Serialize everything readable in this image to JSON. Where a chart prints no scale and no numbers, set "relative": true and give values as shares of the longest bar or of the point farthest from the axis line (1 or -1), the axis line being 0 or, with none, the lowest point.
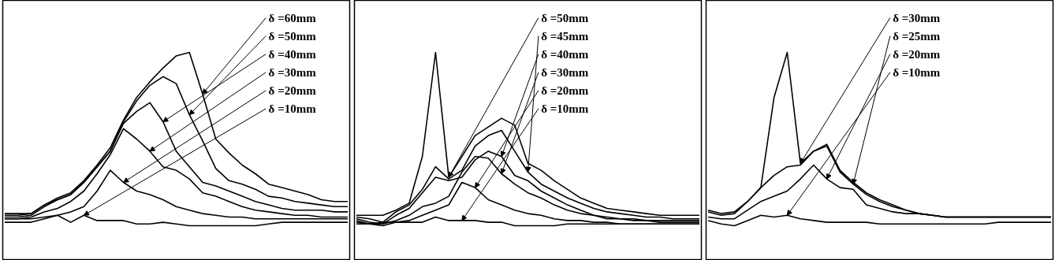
{
  "chart_data": [
    {
      "type": "line",
      "relative": true,
      "categories": [
        null,
        null,
        null,
        null,
        null,
        null,
        null,
        null,
        null,
        null,
        null,
        null,
        null,
        null,
        null,
        null,
        null,
        null,
        null,
        null,
        null,
        null,
        null,
        null,
        null,
        null,
        null
      ],
      "series": [
        {
          "name": "δ =60mm",
          "color": "#000000",
          "values": [
            0.07,
            0.07,
            0.07,
            0.12,
            0.16,
            0.19,
            0.26,
            0.35,
            0.45,
            0.61,
            0.74,
            0.83,
            0.91,
            0.98,
            1.0,
            0.76,
            0.5,
            0.42,
            0.35,
            0.3,
            0.24,
            0.22,
            0.2,
            0.18,
            0.15,
            0.14,
            0.14
          ]
        },
        {
          "name": "δ =50mm",
          "color": "#000000",
          "values": [
            0.06,
            0.06,
            0.07,
            0.12,
            0.15,
            0.18,
            0.25,
            0.34,
            0.43,
            0.6,
            0.72,
            0.81,
            0.86,
            0.82,
            0.64,
            0.49,
            0.33,
            0.26,
            0.24,
            0.21,
            0.17,
            0.16,
            0.14,
            0.13,
            0.12,
            0.11,
            0.11
          ]
        },
        {
          "name": "δ =40mm",
          "color": "#000000",
          "values": [
            0.05,
            0.05,
            0.06,
            0.11,
            0.15,
            0.18,
            0.25,
            0.34,
            0.43,
            0.59,
            0.66,
            0.71,
            0.6,
            0.43,
            0.34,
            0.25,
            0.23,
            0.2,
            0.17,
            0.14,
            0.12,
            0.1,
            0.09,
            0.09,
            0.09,
            0.08,
            0.08
          ]
        },
        {
          "name": "δ =30mm",
          "color": "#000000",
          "values": [
            0.04,
            0.04,
            0.05,
            0.08,
            0.1,
            0.14,
            0.2,
            0.3,
            0.41,
            0.56,
            0.5,
            0.43,
            0.34,
            0.32,
            0.27,
            0.19,
            0.17,
            0.14,
            0.11,
            0.09,
            0.08,
            0.07,
            0.06,
            0.06,
            0.05,
            0.05,
            0.05
          ]
        },
        {
          "name": "δ =20mm",
          "color": "#000000",
          "values": [
            0.04,
            0.04,
            0.04,
            0.05,
            0.06,
            0.08,
            0.11,
            0.2,
            0.32,
            0.25,
            0.2,
            0.18,
            0.15,
            0.11,
            0.09,
            0.07,
            0.06,
            0.05,
            0.05,
            0.04,
            0.04,
            0.04,
            0.04,
            0.04,
            0.04,
            0.04,
            0.04
          ]
        },
        {
          "name": "δ =10mm",
          "color": "#000000",
          "values": [
            0.02,
            0.02,
            0.02,
            0.04,
            0.06,
            0.02,
            0.06,
            0.03,
            0.03,
            0.03,
            0.01,
            0.01,
            0.02,
            0.01,
            0,
            0,
            0,
            0,
            0,
            0,
            0.01,
            0.02,
            0.02,
            0.02,
            0.02,
            0.02,
            0.02
          ]
        }
      ]
    },
    {
      "type": "line",
      "relative": true,
      "categories": [
        null,
        null,
        null,
        null,
        null,
        null,
        null,
        null,
        null,
        null,
        null,
        null,
        null,
        null,
        null,
        null,
        null,
        null,
        null,
        null,
        null,
        null,
        null,
        null,
        null,
        null,
        null
      ],
      "series": [
        {
          "name": "δ =50mm",
          "color": "#000000",
          "values": [
            0.06,
            0.06,
            0.06,
            0.09,
            0.13,
            0.4,
            1.0,
            0.28,
            0.4,
            0.52,
            0.57,
            0.62,
            0.58,
            0.36,
            0.32,
            0.26,
            0.21,
            0.16,
            0.13,
            0.1,
            0.09,
            0.08,
            0.07,
            0.06,
            0.06,
            0.06,
            0.06
          ]
        },
        {
          "name": "δ =45mm",
          "color": "#000000",
          "values": [
            0.05,
            0.04,
            0.02,
            0.08,
            0.12,
            0.21,
            0.34,
            0.27,
            0.32,
            0.46,
            0.52,
            0.55,
            0.43,
            0.31,
            0.24,
            0.2,
            0.16,
            0.13,
            0.1,
            0.08,
            0.07,
            0.06,
            0.05,
            0.05,
            0.04,
            0.04,
            0.04
          ]
        },
        {
          "name": "δ =40mm",
          "color": "#000000",
          "values": [
            0.04,
            0.02,
            0.01,
            0.06,
            0.1,
            0.19,
            0.28,
            0.26,
            0.28,
            0.38,
            0.43,
            0.4,
            0.29,
            0.26,
            0.2,
            0.16,
            0.12,
            0.09,
            0.06,
            0.05,
            0.04,
            0.04,
            0.03,
            0.03,
            0.03,
            0.03,
            0.03
          ]
        },
        {
          "name": "δ =30mm",
          "color": "#000000",
          "values": [
            0.03,
            0.01,
            0.01,
            0.03,
            0.06,
            0.11,
            0.13,
            0.17,
            0.31,
            0.4,
            0.39,
            0.3,
            0.24,
            0.19,
            0.16,
            0.12,
            0.09,
            0.07,
            0.06,
            0.04,
            0.04,
            0.03,
            0.03,
            0.02,
            0.02,
            0.02,
            0.02
          ]
        },
        {
          "name": "δ =20mm",
          "color": "#000000",
          "values": [
            0.02,
            0.01,
            0,
            0.02,
            0.03,
            0.06,
            0.09,
            0.12,
            0.25,
            0.22,
            0.15,
            0.12,
            0.09,
            0.07,
            0.06,
            0.04,
            0.03,
            0.03,
            0.02,
            0.02,
            0.01,
            0.01,
            0.01,
            0.01,
            0.01,
            0.01,
            0.01
          ]
        },
        {
          "name": "δ =10mm",
          "color": "#000000",
          "values": [
            0.01,
            0.01,
            0.02,
            0.02,
            0.02,
            0.02,
            0.05,
            0.03,
            0.03,
            0.03,
            0.02,
            0.02,
            0,
            0,
            0,
            0,
            0.01,
            0.01,
            0.01,
            0.01,
            0.01,
            0.01,
            0.01,
            0.01,
            0.01,
            0.01,
            0.01
          ]
        }
      ]
    },
    {
      "type": "line",
      "relative": true,
      "categories": [
        null,
        null,
        null,
        null,
        null,
        null,
        null,
        null,
        null,
        null,
        null,
        null,
        null,
        null,
        null,
        null,
        null,
        null,
        null,
        null,
        null,
        null,
        null,
        null,
        null,
        null,
        null
      ],
      "series": [
        {
          "name": "δ =30mm",
          "color": "#000000",
          "values": [
            0.09,
            0.07,
            0.08,
            0.14,
            0.22,
            0.74,
            1.0,
            0.36,
            0.43,
            0.47,
            0.32,
            0.25,
            0.19,
            0.15,
            0.12,
            0.09,
            0.07,
            0.06,
            0.05,
            0.05,
            0.05,
            0.05,
            0.05,
            0.05,
            0.05,
            0.05,
            0.05
          ]
        },
        {
          "name": "δ =25mm",
          "color": "#000000",
          "values": [
            0.08,
            0.06,
            0.07,
            0.14,
            0.22,
            0.29,
            0.34,
            0.35,
            0.43,
            0.46,
            0.31,
            0.24,
            0.18,
            0.14,
            0.11,
            0.09,
            0.07,
            0.06,
            0.05,
            0.05,
            0.05,
            0.05,
            0.05,
            0.05,
            0.05,
            0.05,
            0.05
          ]
        },
        {
          "name": "δ =20mm",
          "color": "#000000",
          "values": [
            0.05,
            0.04,
            0.04,
            0.09,
            0.14,
            0.17,
            0.2,
            0.27,
            0.35,
            0.27,
            0.22,
            0.21,
            0.12,
            0.1,
            0.08,
            0.07,
            0.07,
            0.06,
            0.05,
            0.05,
            0.05,
            0.05,
            0.05,
            0.05,
            0.05,
            0.05,
            0.05
          ]
        },
        {
          "name": "δ =10mm",
          "color": "#000000",
          "values": [
            0.03,
            0.01,
            0,
            0.03,
            0.06,
            0.05,
            0.06,
            0.04,
            0.03,
            0.02,
            0.02,
            0.02,
            0.02,
            0.01,
            0.01,
            0.01,
            0.01,
            0.01,
            0.01,
            0.01,
            0.01,
            0.01,
            0.02,
            0.02,
            0.02,
            0.02,
            0.02
          ]
        }
      ]
    }
  ]
}
